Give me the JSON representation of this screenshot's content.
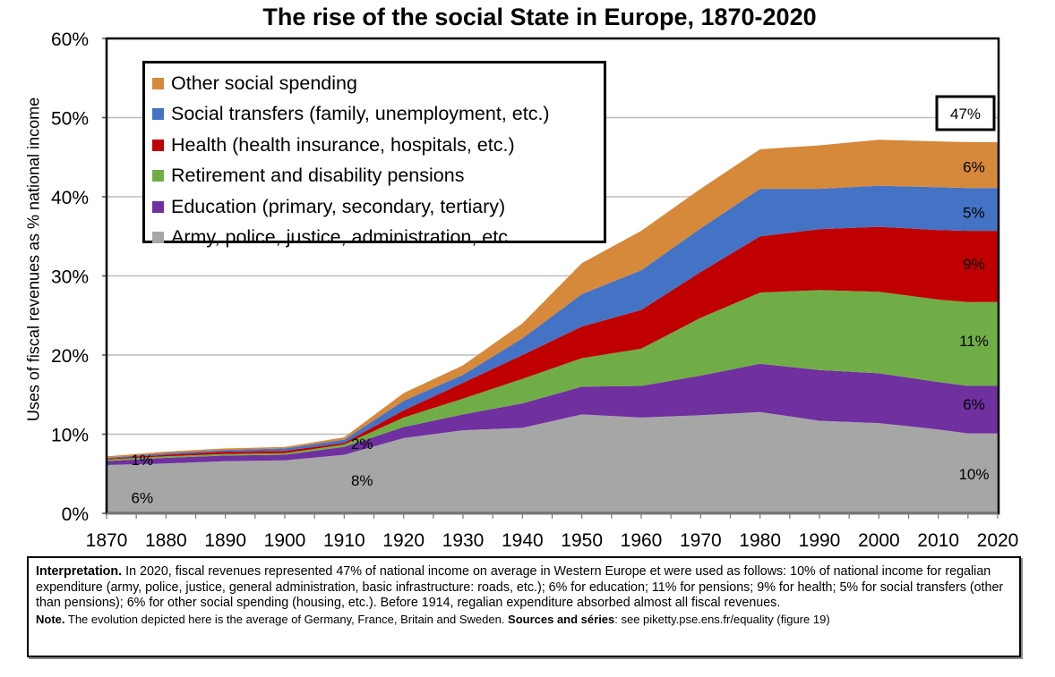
{
  "chart_data": {
    "type": "area",
    "stacked": true,
    "title": "The rise of the social State in Europe, 1870-2020",
    "ylabel": "Uses of fiscal revenues as % national income",
    "xlabel": "",
    "ylim": [
      0,
      60
    ],
    "xlim": [
      1870,
      2020
    ],
    "y_ticks": [
      "0%",
      "10%",
      "20%",
      "30%",
      "40%",
      "50%",
      "60%"
    ],
    "x_ticks": [
      "1870",
      "1880",
      "1890",
      "1900",
      "1910",
      "1920",
      "1930",
      "1940",
      "1950",
      "1960",
      "1970",
      "1980",
      "1990",
      "2000",
      "2010",
      "2020"
    ],
    "grid": true,
    "legend_position": "top-left",
    "x": [
      1870,
      1880,
      1890,
      1900,
      1910,
      1920,
      1930,
      1940,
      1950,
      1960,
      1970,
      1980,
      1990,
      2000,
      2010,
      2015,
      2020
    ],
    "series": [
      {
        "name": "Army, police, justice, administration, etc.",
        "color": "#A6A6A6",
        "values": [
          6.1,
          6.3,
          6.6,
          6.7,
          7.4,
          9.5,
          10.5,
          10.8,
          12.5,
          12.1,
          12.4,
          12.8,
          11.7,
          11.4,
          10.6,
          10.1,
          10.1
        ]
      },
      {
        "name": "Education (primary, secondary, tertiary)",
        "color": "#7030A0",
        "values": [
          0.5,
          0.7,
          0.7,
          0.7,
          1.0,
          1.4,
          2.0,
          3.1,
          3.5,
          4.0,
          5.0,
          6.1,
          6.4,
          6.3,
          6.0,
          6.0,
          6.0
        ]
      },
      {
        "name": "Retirement and disability pensions",
        "color": "#70AD47",
        "values": [
          0.2,
          0.2,
          0.2,
          0.2,
          0.3,
          1.2,
          2.0,
          3.1,
          3.6,
          4.7,
          7.3,
          9.0,
          10.1,
          10.3,
          10.4,
          10.6,
          10.6
        ]
      },
      {
        "name": "Health (health insurance, hospitals, etc.)",
        "color": "#C00000",
        "values": [
          0.1,
          0.2,
          0.3,
          0.3,
          0.2,
          0.9,
          2.0,
          3.0,
          4.0,
          4.9,
          5.8,
          7.1,
          7.7,
          8.2,
          8.8,
          9.0,
          9.0
        ]
      },
      {
        "name": "Social transfers (family, unemployment, etc.)",
        "color": "#4472C4",
        "values": [
          0.1,
          0.2,
          0.2,
          0.3,
          0.4,
          1.2,
          1.0,
          2.1,
          4.1,
          5.0,
          5.5,
          6.0,
          5.1,
          5.2,
          5.4,
          5.4,
          5.4
        ]
      },
      {
        "name": "Other social spending",
        "color": "#D6893A",
        "values": [
          0.2,
          0.2,
          0.2,
          0.2,
          0.3,
          1.0,
          1.2,
          1.9,
          3.9,
          5.0,
          5.0,
          5.0,
          5.5,
          5.8,
          5.8,
          5.8,
          5.8
        ]
      }
    ],
    "annotations": [
      {
        "text": "1%",
        "x": 1876,
        "y": 6.8
      },
      {
        "text": "2%",
        "x": 1913,
        "y": 8.8
      },
      {
        "text": "6%",
        "x": 1876,
        "y": 2.0
      },
      {
        "text": "8%",
        "x": 1913,
        "y": 4.2
      },
      {
        "text": "6%",
        "x": 2016,
        "y": 43.8
      },
      {
        "text": "5%",
        "x": 2016,
        "y": 38.0
      },
      {
        "text": "9%",
        "x": 2016,
        "y": 31.5
      },
      {
        "text": "11%",
        "x": 2016,
        "y": 21.8
      },
      {
        "text": "6%",
        "x": 2016,
        "y": 13.8
      },
      {
        "text": "10%",
        "x": 2016,
        "y": 5.0
      }
    ],
    "total_label": "47%"
  },
  "note": {
    "interp_label": "Interpretation.",
    "interp_text": " In 2020, fiscal revenues represented 47% of national income on average in Western Europe et were used as follows: 10% of national income for regalian expenditure (army, police, justice, general administration, basic infrastructure: roads, etc.); 6% for education; 11% for pensions; 9% for health; 5% for social transfers (other than pensions); 6% for other social spending (housing, etc.). Before 1914, regalian expenditure absorbed almost all fiscal revenues.",
    "note_label": "Note.",
    "note_text": " The evolution depicted here is the average of Germany, France, Britain and Sweden.  ",
    "sources_label": "Sources and séries",
    "sources_text": ": see piketty.pse.ens.fr/equality (figure 19)"
  }
}
